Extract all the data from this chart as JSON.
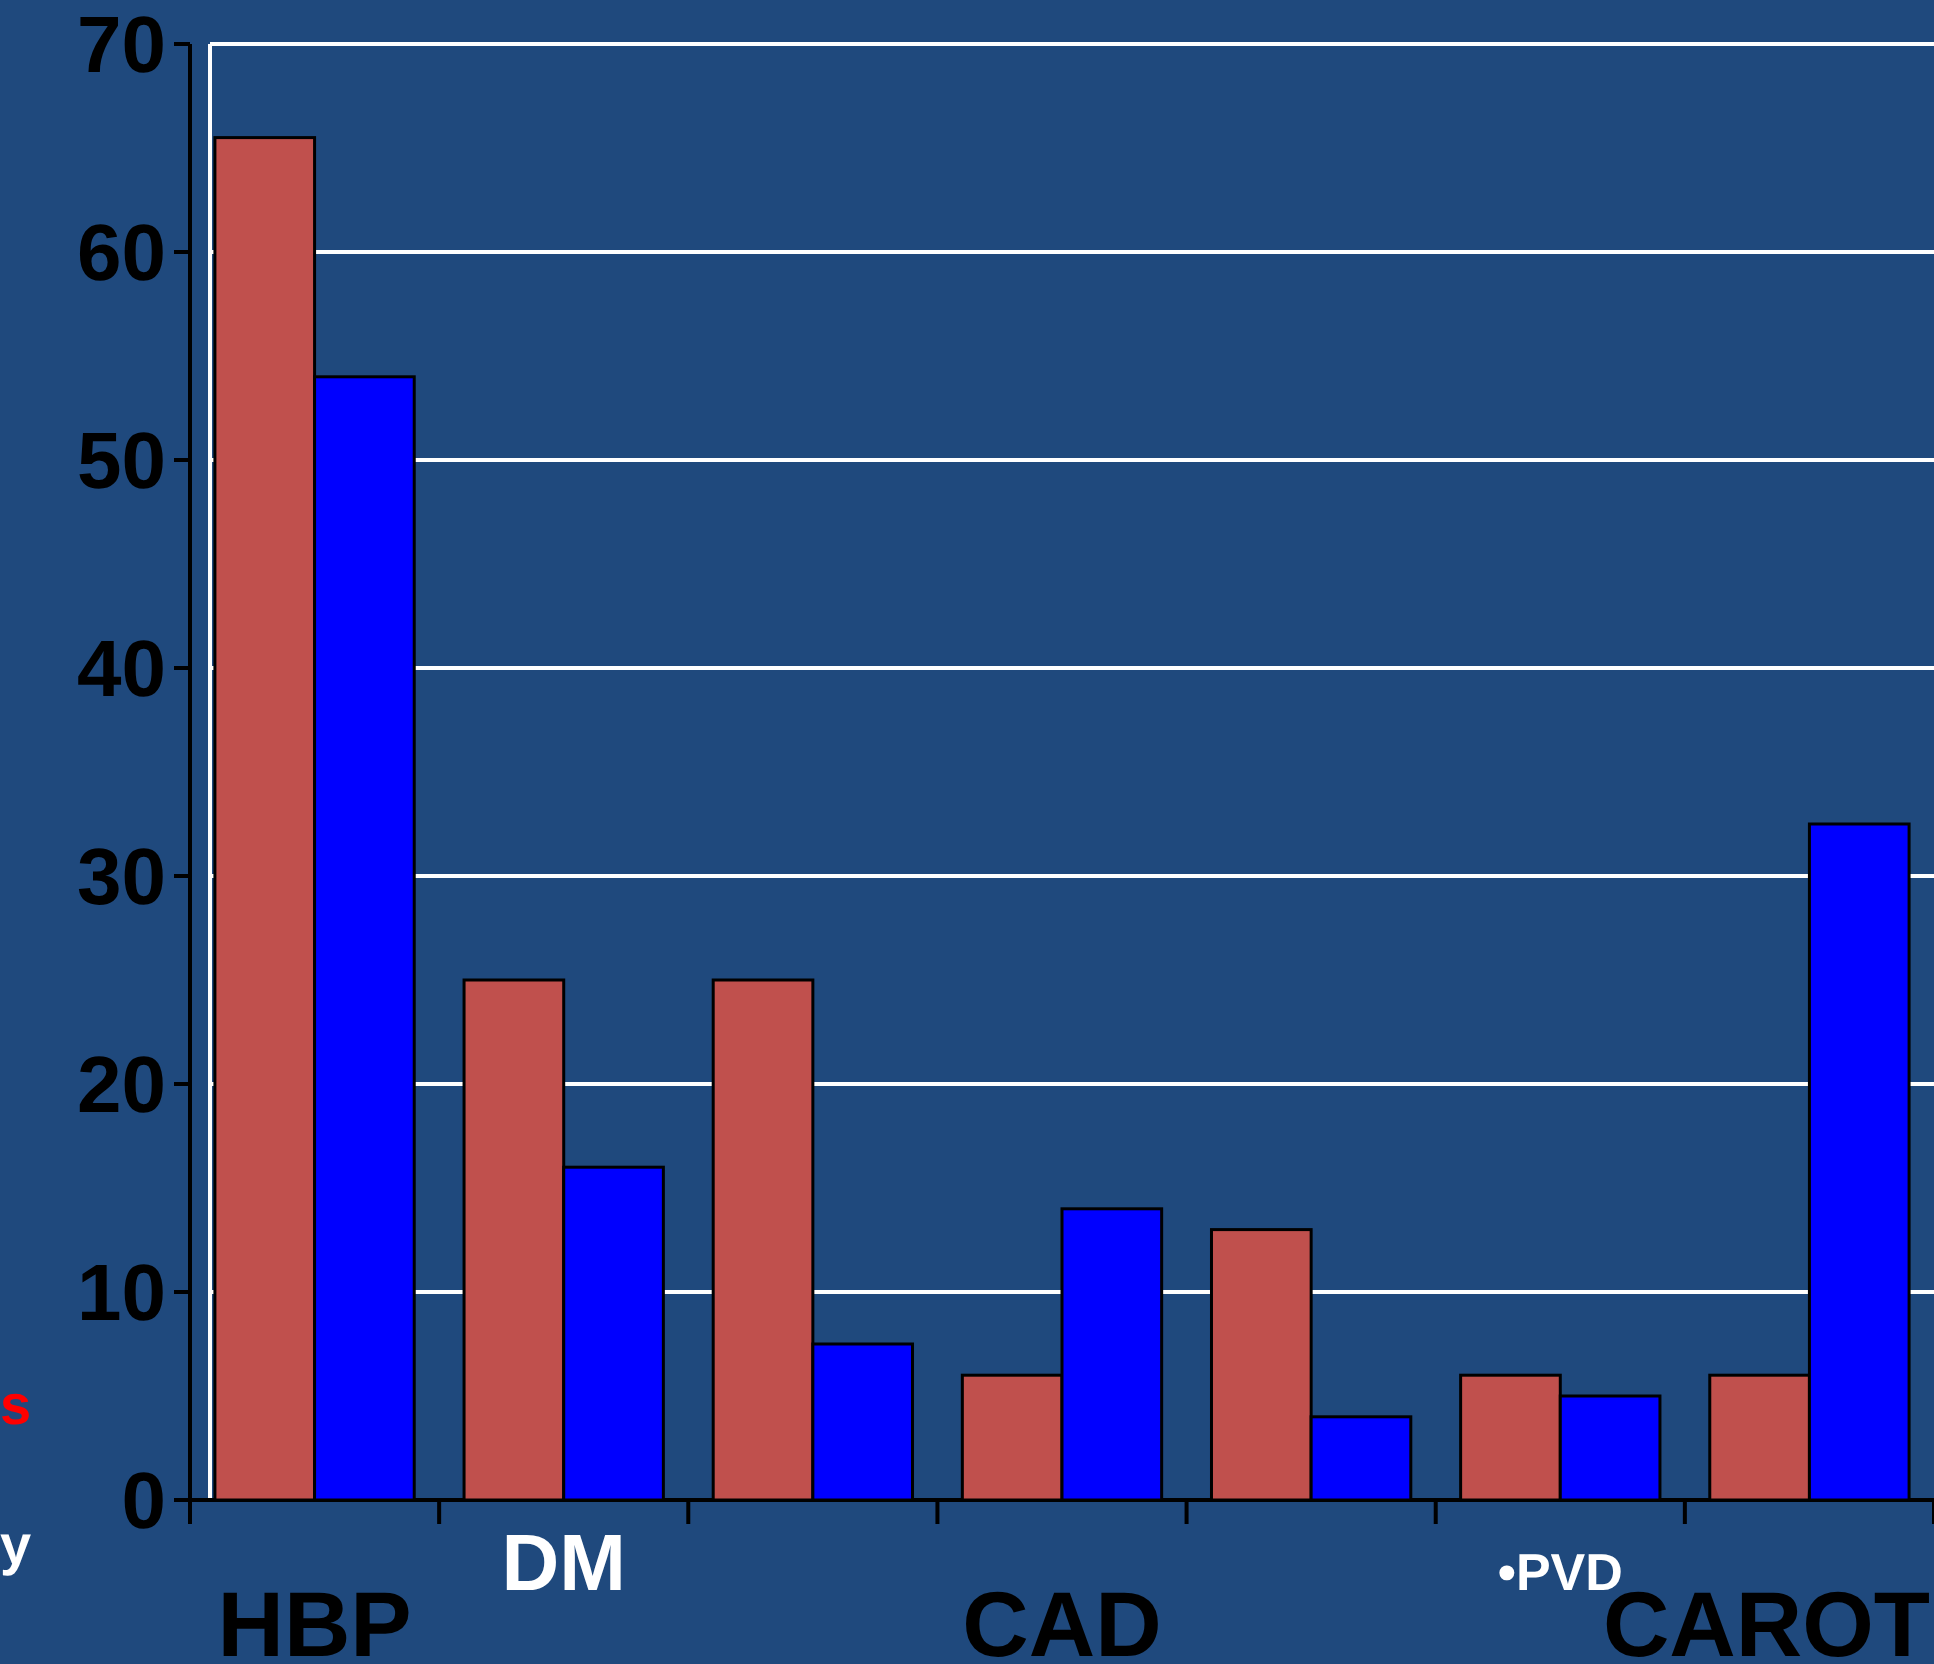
{
  "chart_data": {
    "type": "bar",
    "categories": [
      "HBP",
      "DM",
      null,
      "CAD",
      null,
      "•PVD",
      "CAROT"
    ],
    "series": [
      {
        "color": "#c0504d",
        "values": [
          65.5,
          25,
          25,
          6,
          13,
          6,
          6
        ]
      },
      {
        "color": "#0000ff",
        "values": [
          54,
          16,
          7.5,
          14,
          4,
          5,
          32.5
        ]
      }
    ],
    "ylim": [
      0,
      70
    ],
    "yticks": [
      0,
      10,
      20,
      30,
      40,
      50,
      60,
      70
    ],
    "grid": "y",
    "annotations": [
      "s",
      "y"
    ]
  }
}
